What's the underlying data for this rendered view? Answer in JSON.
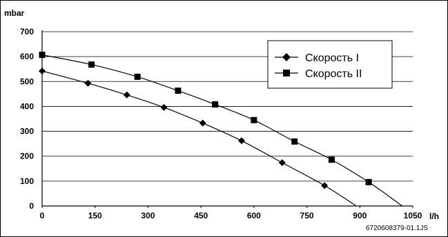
{
  "chart_data": {
    "type": "line",
    "title": "",
    "xlabel": "l/h",
    "ylabel": "mbar",
    "xlim": [
      0,
      1050
    ],
    "ylim": [
      0,
      700
    ],
    "x_ticks": [
      0,
      150,
      300,
      450,
      600,
      750,
      900,
      1050
    ],
    "y_ticks": [
      0,
      100,
      200,
      300,
      400,
      500,
      600,
      700
    ],
    "grid": "horizontal",
    "legend_position": "top-right",
    "series": [
      {
        "name": "Скорость I",
        "marker": "diamond",
        "values": [
          {
            "x": 0,
            "y": 542
          },
          {
            "x": 130,
            "y": 493
          },
          {
            "x": 240,
            "y": 446
          },
          {
            "x": 345,
            "y": 396
          },
          {
            "x": 455,
            "y": 333
          },
          {
            "x": 565,
            "y": 262
          },
          {
            "x": 680,
            "y": 174
          },
          {
            "x": 800,
            "y": 82
          }
        ],
        "curve_end": {
          "x": 890,
          "y": 0
        }
      },
      {
        "name": "Скорость II",
        "marker": "square",
        "values": [
          {
            "x": 0,
            "y": 607
          },
          {
            "x": 140,
            "y": 568
          },
          {
            "x": 270,
            "y": 519
          },
          {
            "x": 385,
            "y": 463
          },
          {
            "x": 490,
            "y": 408
          },
          {
            "x": 600,
            "y": 345
          },
          {
            "x": 715,
            "y": 259
          },
          {
            "x": 820,
            "y": 186
          },
          {
            "x": 925,
            "y": 96
          }
        ],
        "curve_end": {
          "x": 1020,
          "y": 0
        }
      }
    ]
  },
  "footer": {
    "code": "6720608379-01.1JS"
  }
}
